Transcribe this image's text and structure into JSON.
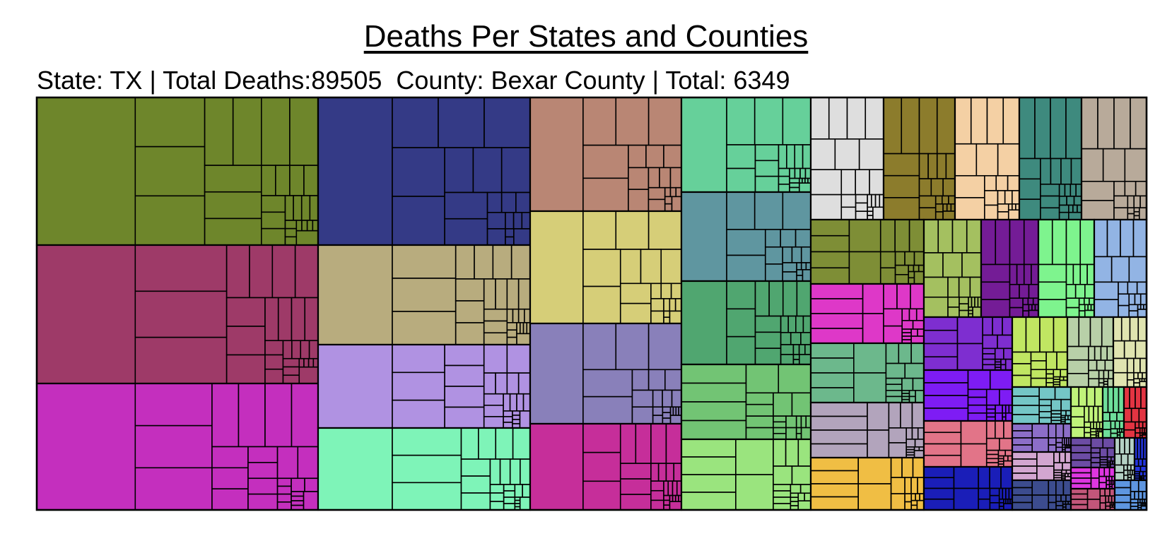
{
  "chart_data": {
    "type": "treemap",
    "title": "Deaths Per States and Counties",
    "selection": {
      "state_label": "State:",
      "state": "TX",
      "total_deaths_label": "Total Deaths:",
      "total_deaths": "89505",
      "county_label": "County:",
      "county": "Bexar County",
      "county_total_label": "Total:",
      "county_total": "6349"
    },
    "layout_note": "states with stacked blocks of counties; area proportional to deaths",
    "state_colors": [
      "#6e862b",
      "#9e3a68",
      "#c42fbe",
      "#343a86",
      "#b8ac7e",
      "#b092e2",
      "#7ef4b8",
      "#b98674",
      "#d6ce78",
      "#8980ba",
      "#c62e9a",
      "#66d09a",
      "#5f96a0",
      "#50a670",
      "#72c474",
      "#9ae47e",
      "#dedede",
      "#8c7c2c",
      "#f4d0a4",
      "#3e8a7e",
      "#b8aa9a",
      "#7e8e36",
      "#de38c8",
      "#6cb88c",
      "#b2a4bc",
      "#f0be44",
      "#a4c060",
      "#741c96",
      "#7e2ed0",
      "#7e1cf4",
      "#e27488",
      "#1a1eb8",
      "#7ef48e",
      "#92b4e4",
      "#c0e662",
      "#b8d0a8",
      "#e0e4b0",
      "#74c6c6",
      "#c0f27a",
      "#6ede9a",
      "#e23442",
      "#8c6ec8",
      "#6c4ca4",
      "#b4d0c4",
      "#2436e0",
      "#d2a6d0",
      "#3c4c8e",
      "#de36e0",
      "#c2567a",
      "#5e96e0"
    ]
  }
}
